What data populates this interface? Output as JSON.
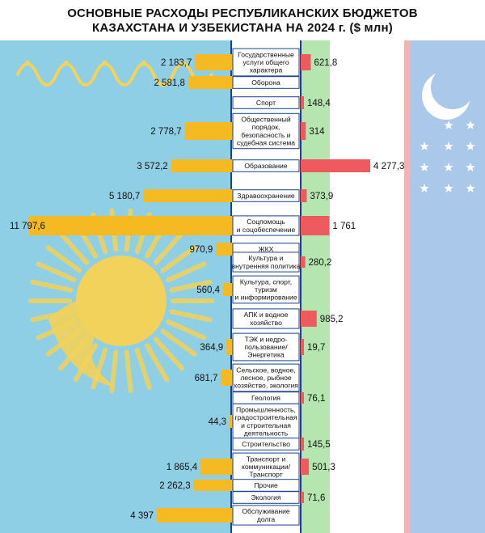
{
  "title_lines": [
    "ОСНОВНЫЕ РАСХОДЫ РЕСПУБЛИКАНСКИХ БЮДЖЕТОВ",
    "КАЗАХСТАНА И УЗБЕКИСТАНА НА 2024 г. ($ млн)"
  ],
  "colors": {
    "kazakhstan_bar": "#f5b921",
    "uzbekistan_bar": "#ef5a5f",
    "kazakhstan_flag_blue": "#8ecfe6",
    "kazakhstan_ornament": "#f2d25a",
    "uzbekistan_flag_blue": "#a9c8ea",
    "uzbekistan_flag_green": "#b6e6b0",
    "uzbekistan_flag_red": "#f2b3b3",
    "label_box_border": "#1a3f8f"
  },
  "chart_data": {
    "type": "bar",
    "orientation": "horizontal-diverging",
    "categories": [
      "Государственные услуги общего характера",
      "Оборона",
      "Спорт",
      "Общественный порядок, безопасность и судебная система",
      "Образование",
      "Здравоохранение",
      "Соцпомощь и соцобеспечение",
      "ЖКХ",
      "Культура и внутренняя политика",
      "Культура, спорт, туризм и информирование",
      "АПК и водное хозяйство",
      "ТЭК и недро-пользование/ Энергетика",
      "Сельское, водное, лесное, рыбное хозяйство, экология",
      "Геология",
      "Промышленность, градостроительная и строительная деятельность",
      "Строительство",
      "Транспорт и коммуникации/ Транспорт",
      "Прочие",
      "Экология",
      "Обслуживание долга"
    ],
    "category_lines": [
      [
        "Государственные",
        "услуги общего",
        "характера"
      ],
      [
        "Оборона"
      ],
      [
        "Спорт"
      ],
      [
        "Общественный",
        "порядок,",
        "безопасность и",
        "судебная система"
      ],
      [
        "Образование"
      ],
      [
        "Здравоохранение"
      ],
      [
        "Соцпомощь",
        "и соцобеспечение"
      ],
      [
        "ЖКХ"
      ],
      [
        "Культура и",
        "внутренняя политика"
      ],
      [
        "Культура, спорт,",
        "туризм",
        "и информирование"
      ],
      [
        "АПК и водное",
        "хозяйство"
      ],
      [
        "ТЭК и недро-",
        "пользование/",
        "Энергетика"
      ],
      [
        "Сельское, водное,",
        "лесное, рыбное",
        "хозяйство, экология"
      ],
      [
        "Геология"
      ],
      [
        "Промышленность,",
        "градостроительная",
        "и строительная",
        "деятельность"
      ],
      [
        "Строительство"
      ],
      [
        "Транспорт и",
        "коммуникации/",
        "Транспорт"
      ],
      [
        "Прочие"
      ],
      [
        "Экология"
      ],
      [
        "Обслуживание",
        "долга"
      ]
    ],
    "series": [
      {
        "values": [
          2183.7,
          2581.8,
          null,
          2778.7,
          3572.2,
          5180.7,
          11797.6,
          970.9,
          null,
          560.4,
          null,
          364.9,
          681.7,
          null,
          44.3,
          null,
          1865.4,
          2262.3,
          null,
          4397
        ],
        "labels": [
          "2 183,7",
          "2 581,8",
          "",
          "2 778,7",
          "3 572,2",
          "5 180,7",
          "11 797,6",
          "970,9",
          "",
          "560,4",
          "",
          "364,9",
          "681,7",
          "",
          "44,3",
          "",
          "1 865,4",
          "2 262,3",
          "",
          "4 397"
        ]
      },
      {
        "values": [
          621.8,
          null,
          148.4,
          314,
          4277.3,
          373.9,
          1761,
          null,
          280.2,
          null,
          985.2,
          19.7,
          null,
          76.1,
          null,
          145.5,
          501.3,
          null,
          71.6,
          null
        ],
        "labels": [
          "621,8",
          "",
          "148,4",
          "314",
          "4 277,3",
          "373,9",
          "1 761",
          "",
          "280,2",
          "",
          "985,2",
          "19,7",
          "",
          "76,1",
          "",
          "145,5",
          "501,3",
          "",
          "71,6",
          ""
        ]
      }
    ]
  }
}
